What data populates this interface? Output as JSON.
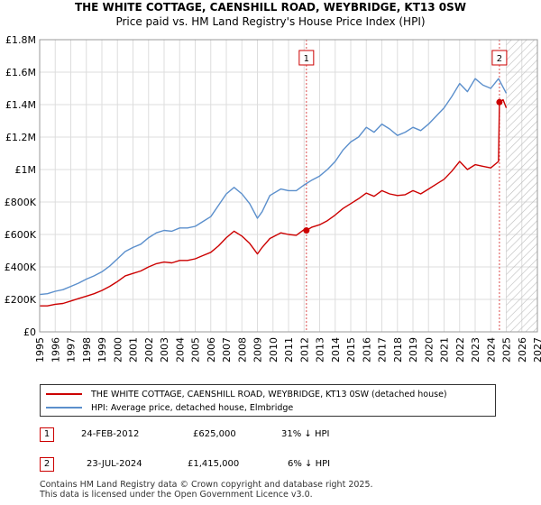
{
  "chart_data": {
    "type": "line",
    "title": "THE WHITE COTTAGE, CAENSHILL ROAD, WEYBRIDGE, KT13 0SW",
    "subtitle": "Price paid vs. HM Land Registry's House Price Index (HPI)",
    "xlim": [
      1995,
      2027
    ],
    "ylim": [
      0,
      1800000
    ],
    "x_ticks": [
      "1995",
      "1996",
      "1997",
      "1998",
      "1999",
      "2000",
      "2001",
      "2002",
      "2003",
      "2004",
      "2005",
      "2006",
      "2007",
      "2008",
      "2009",
      "2010",
      "2011",
      "2012",
      "2013",
      "2014",
      "2015",
      "2016",
      "2017",
      "2018",
      "2019",
      "2020",
      "2021",
      "2022",
      "2023",
      "2024",
      "2025",
      "2026",
      "2027"
    ],
    "y_ticks": [
      {
        "value": 0,
        "label": "£0"
      },
      {
        "value": 200000,
        "label": "£200K"
      },
      {
        "value": 400000,
        "label": "£400K"
      },
      {
        "value": 600000,
        "label": "£600K"
      },
      {
        "value": 800000,
        "label": "£800K"
      },
      {
        "value": 1000000,
        "label": "£1M"
      },
      {
        "value": 1200000,
        "label": "£1.2M"
      },
      {
        "value": 1400000,
        "label": "£1.4M"
      },
      {
        "value": 1600000,
        "label": "£1.6M"
      },
      {
        "value": 1800000,
        "label": "£1.8M"
      }
    ],
    "grid": true,
    "hatch_from": 2025.0,
    "series": [
      {
        "name": "THE WHITE COTTAGE, CAENSHILL ROAD, WEYBRIDGE, KT13 0SW (detached house)",
        "color": "#cc0000",
        "x": [
          1995.0,
          1995.5,
          1996.0,
          1996.5,
          1997.0,
          1997.5,
          1998.0,
          1998.5,
          1999.0,
          1999.5,
          2000.0,
          2000.5,
          2001.0,
          2001.5,
          2002.0,
          2002.5,
          2003.0,
          2003.5,
          2004.0,
          2004.5,
          2005.0,
          2005.5,
          2006.0,
          2006.5,
          2007.0,
          2007.5,
          2008.0,
          2008.5,
          2009.0,
          2009.3,
          2009.8,
          2010.5,
          2011.0,
          2011.5,
          2012.0,
          2012.15,
          2012.5,
          2013.0,
          2013.5,
          2014.0,
          2014.5,
          2015.0,
          2015.5,
          2016.0,
          2016.5,
          2017.0,
          2017.5,
          2018.0,
          2018.5,
          2019.0,
          2019.5,
          2020.0,
          2020.5,
          2021.0,
          2021.5,
          2022.0,
          2022.5,
          2023.0,
          2023.5,
          2024.0,
          2024.5,
          2024.56,
          2024.8,
          2025.0
        ],
        "y": [
          160000,
          160000,
          170000,
          175000,
          190000,
          205000,
          220000,
          235000,
          255000,
          280000,
          310000,
          345000,
          360000,
          375000,
          400000,
          420000,
          430000,
          425000,
          440000,
          440000,
          450000,
          470000,
          490000,
          530000,
          580000,
          620000,
          590000,
          545000,
          480000,
          520000,
          575000,
          610000,
          600000,
          595000,
          630000,
          625000,
          645000,
          660000,
          685000,
          720000,
          760000,
          790000,
          820000,
          855000,
          835000,
          870000,
          850000,
          840000,
          845000,
          870000,
          850000,
          880000,
          910000,
          940000,
          990000,
          1050000,
          1000000,
          1030000,
          1020000,
          1010000,
          1050000,
          1415000,
          1430000,
          1380000
        ]
      },
      {
        "name": "HPI: Average price, detached house, Elmbridge",
        "color": "#5b8fcc",
        "x": [
          1995.0,
          1995.5,
          1996.0,
          1996.5,
          1997.0,
          1997.5,
          1998.0,
          1998.5,
          1999.0,
          1999.5,
          2000.0,
          2000.5,
          2001.0,
          2001.5,
          2002.0,
          2002.5,
          2003.0,
          2003.5,
          2004.0,
          2004.5,
          2005.0,
          2005.5,
          2006.0,
          2006.5,
          2007.0,
          2007.5,
          2008.0,
          2008.5,
          2009.0,
          2009.3,
          2009.8,
          2010.5,
          2011.0,
          2011.5,
          2012.0,
          2012.5,
          2013.0,
          2013.5,
          2014.0,
          2014.5,
          2015.0,
          2015.5,
          2016.0,
          2016.5,
          2017.0,
          2017.5,
          2018.0,
          2018.5,
          2019.0,
          2019.5,
          2020.0,
          2020.5,
          2021.0,
          2021.5,
          2022.0,
          2022.5,
          2023.0,
          2023.5,
          2024.0,
          2024.5,
          2025.0
        ],
        "y": [
          230000,
          235000,
          250000,
          260000,
          280000,
          300000,
          325000,
          345000,
          370000,
          405000,
          450000,
          495000,
          520000,
          540000,
          580000,
          610000,
          625000,
          620000,
          640000,
          640000,
          650000,
          680000,
          710000,
          780000,
          850000,
          890000,
          850000,
          790000,
          700000,
          740000,
          840000,
          880000,
          870000,
          870000,
          905000,
          935000,
          960000,
          1000000,
          1050000,
          1120000,
          1170000,
          1200000,
          1260000,
          1230000,
          1280000,
          1250000,
          1210000,
          1230000,
          1260000,
          1240000,
          1280000,
          1330000,
          1380000,
          1450000,
          1530000,
          1480000,
          1560000,
          1520000,
          1500000,
          1560000,
          1470000
        ]
      }
    ],
    "annotations": [
      {
        "id": "1",
        "x": 2012.15,
        "y": 625000
      },
      {
        "id": "2",
        "x": 2024.56,
        "y": 1415000
      }
    ]
  },
  "legend": {
    "items": [
      {
        "label": "THE WHITE COTTAGE, CAENSHILL ROAD, WEYBRIDGE, KT13 0SW (detached house)",
        "color": "#cc0000"
      },
      {
        "label": "HPI: Average price, detached house, Elmbridge",
        "color": "#5b8fcc"
      }
    ]
  },
  "transactions": [
    {
      "id": "1",
      "date": "24-FEB-2012",
      "price": "£625,000",
      "hpi": "31% ↓ HPI"
    },
    {
      "id": "2",
      "date": "23-JUL-2024",
      "price": "£1,415,000",
      "hpi": "6% ↓ HPI"
    }
  ],
  "footer": {
    "line1": "Contains HM Land Registry data © Crown copyright and database right 2025.",
    "line2": "This data is licensed under the Open Government Licence v3.0."
  }
}
